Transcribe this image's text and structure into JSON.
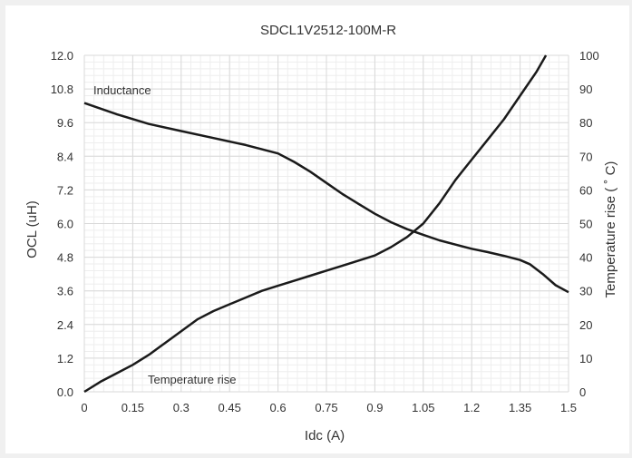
{
  "chart_data": {
    "type": "line",
    "title": "SDCL1V2512-100M-R",
    "xlabel": "Idc (A)",
    "ylabel_left": "OCL (uH)",
    "ylabel_right": "Temperature rise ( ˚ C)",
    "xlim": [
      0,
      1.5
    ],
    "ylim_left": [
      0,
      12
    ],
    "ylim_right": [
      0,
      100
    ],
    "x_ticks": [
      "0",
      "0.15",
      "0.3",
      "0.45",
      "0.6",
      "0.75",
      "0.9",
      "1.05",
      "1.2",
      "1.35",
      "1.5"
    ],
    "y_left_ticks": [
      "0.0",
      "1.2",
      "2.4",
      "3.6",
      "4.8",
      "6.0",
      "7.2",
      "8.4",
      "9.6",
      "10.8",
      "12.0"
    ],
    "y_right_ticks": [
      "0",
      "10",
      "20",
      "30",
      "40",
      "50",
      "60",
      "70",
      "80",
      "90",
      "100"
    ],
    "grid": true,
    "line_color": "#1a1a1a",
    "grid_color": "#d9d9d9",
    "series": [
      {
        "name": "Inductance",
        "axis": "left",
        "points": [
          [
            0,
            10.3
          ],
          [
            0.1,
            9.9
          ],
          [
            0.2,
            9.55
          ],
          [
            0.3,
            9.3
          ],
          [
            0.4,
            9.05
          ],
          [
            0.5,
            8.8
          ],
          [
            0.6,
            8.5
          ],
          [
            0.65,
            8.2
          ],
          [
            0.7,
            7.85
          ],
          [
            0.75,
            7.45
          ],
          [
            0.8,
            7.05
          ],
          [
            0.85,
            6.7
          ],
          [
            0.9,
            6.35
          ],
          [
            0.95,
            6.05
          ],
          [
            1.0,
            5.8
          ],
          [
            1.05,
            5.6
          ],
          [
            1.1,
            5.4
          ],
          [
            1.15,
            5.25
          ],
          [
            1.2,
            5.1
          ],
          [
            1.25,
            4.98
          ],
          [
            1.3,
            4.85
          ],
          [
            1.35,
            4.7
          ],
          [
            1.38,
            4.55
          ],
          [
            1.42,
            4.2
          ],
          [
            1.46,
            3.8
          ],
          [
            1.5,
            3.55
          ]
        ]
      },
      {
        "name": "Temperature rise",
        "axis": "right",
        "points": [
          [
            0,
            0
          ],
          [
            0.05,
            3
          ],
          [
            0.1,
            5.5
          ],
          [
            0.15,
            8
          ],
          [
            0.2,
            11
          ],
          [
            0.25,
            14.5
          ],
          [
            0.3,
            18
          ],
          [
            0.35,
            21.5
          ],
          [
            0.4,
            24
          ],
          [
            0.45,
            26
          ],
          [
            0.5,
            28
          ],
          [
            0.55,
            30
          ],
          [
            0.6,
            31.5
          ],
          [
            0.65,
            33
          ],
          [
            0.7,
            34.5
          ],
          [
            0.75,
            36
          ],
          [
            0.8,
            37.5
          ],
          [
            0.85,
            39
          ],
          [
            0.9,
            40.5
          ],
          [
            0.95,
            43
          ],
          [
            1.0,
            46
          ],
          [
            1.05,
            50
          ],
          [
            1.1,
            56
          ],
          [
            1.15,
            63
          ],
          [
            1.2,
            69
          ],
          [
            1.25,
            75
          ],
          [
            1.3,
            81
          ],
          [
            1.35,
            88
          ],
          [
            1.4,
            95
          ],
          [
            1.43,
            100
          ]
        ]
      }
    ]
  }
}
